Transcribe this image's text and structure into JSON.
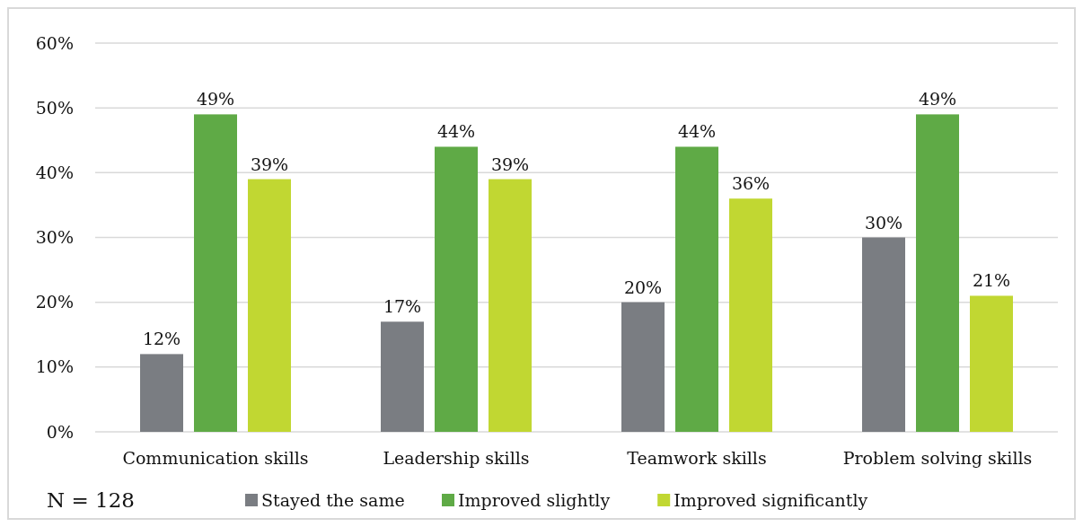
{
  "chart_data": {
    "type": "bar",
    "categories": [
      "Communication skills",
      "Leadership skills",
      "Teamwork skills",
      "Problem solving skills"
    ],
    "series": [
      {
        "name": "Stayed the same",
        "color": "#7a7d82",
        "values": [
          12,
          17,
          20,
          30
        ],
        "value_labels": [
          "12%",
          "17%",
          "20%",
          "30%"
        ]
      },
      {
        "name": "Improved slightly",
        "color": "#5faa46",
        "values": [
          49,
          44,
          44,
          49
        ],
        "value_labels": [
          "49%",
          "44%",
          "44%",
          "49%"
        ]
      },
      {
        "name": "Improved significantly",
        "color": "#c1d732",
        "values": [
          39,
          39,
          36,
          21
        ],
        "value_labels": [
          "39%",
          "39%",
          "36%",
          "21%"
        ]
      }
    ],
    "ylim": [
      0,
      60
    ],
    "yticks": [
      {
        "value": 0,
        "label": "0%"
      },
      {
        "value": 10,
        "label": "10%"
      },
      {
        "value": 20,
        "label": "20%"
      },
      {
        "value": 30,
        "label": "30%"
      },
      {
        "value": 40,
        "label": "40%"
      },
      {
        "value": 50,
        "label": "50%"
      },
      {
        "value": 60,
        "label": "60%"
      }
    ],
    "grid": "y",
    "legend": "bottom",
    "annotations": [
      "N = 128"
    ]
  }
}
